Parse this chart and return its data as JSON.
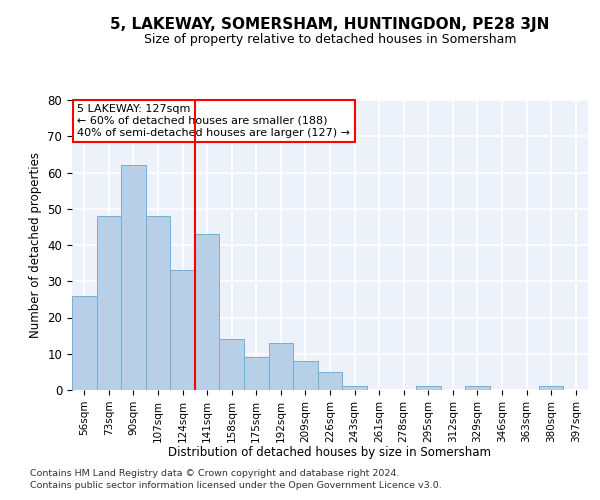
{
  "title": "5, LAKEWAY, SOMERSHAM, HUNTINGDON, PE28 3JN",
  "subtitle": "Size of property relative to detached houses in Somersham",
  "xlabel": "Distribution of detached houses by size in Somersham",
  "ylabel": "Number of detached properties",
  "categories": [
    "56sqm",
    "73sqm",
    "90sqm",
    "107sqm",
    "124sqm",
    "141sqm",
    "158sqm",
    "175sqm",
    "192sqm",
    "209sqm",
    "226sqm",
    "243sqm",
    "261sqm",
    "278sqm",
    "295sqm",
    "312sqm",
    "329sqm",
    "346sqm",
    "363sqm",
    "380sqm",
    "397sqm"
  ],
  "values": [
    26,
    48,
    62,
    48,
    33,
    43,
    14,
    9,
    13,
    8,
    5,
    1,
    0,
    0,
    1,
    0,
    1,
    0,
    0,
    1,
    0
  ],
  "bar_color": "#b8cfe8",
  "bar_edge_color": "#7aadd4",
  "vline_x": 4.5,
  "annotation_line1": "5 LAKEWAY: 127sqm",
  "annotation_line2": "← 60% of detached houses are smaller (188)",
  "annotation_line3": "40% of semi-detached houses are larger (127) →",
  "ylim": [
    0,
    80
  ],
  "yticks": [
    0,
    10,
    20,
    30,
    40,
    50,
    60,
    70,
    80
  ],
  "bg_color": "#edf1fa",
  "grid_color": "#ffffff",
  "footer1": "Contains HM Land Registry data © Crown copyright and database right 2024.",
  "footer2": "Contains public sector information licensed under the Open Government Licence v3.0."
}
